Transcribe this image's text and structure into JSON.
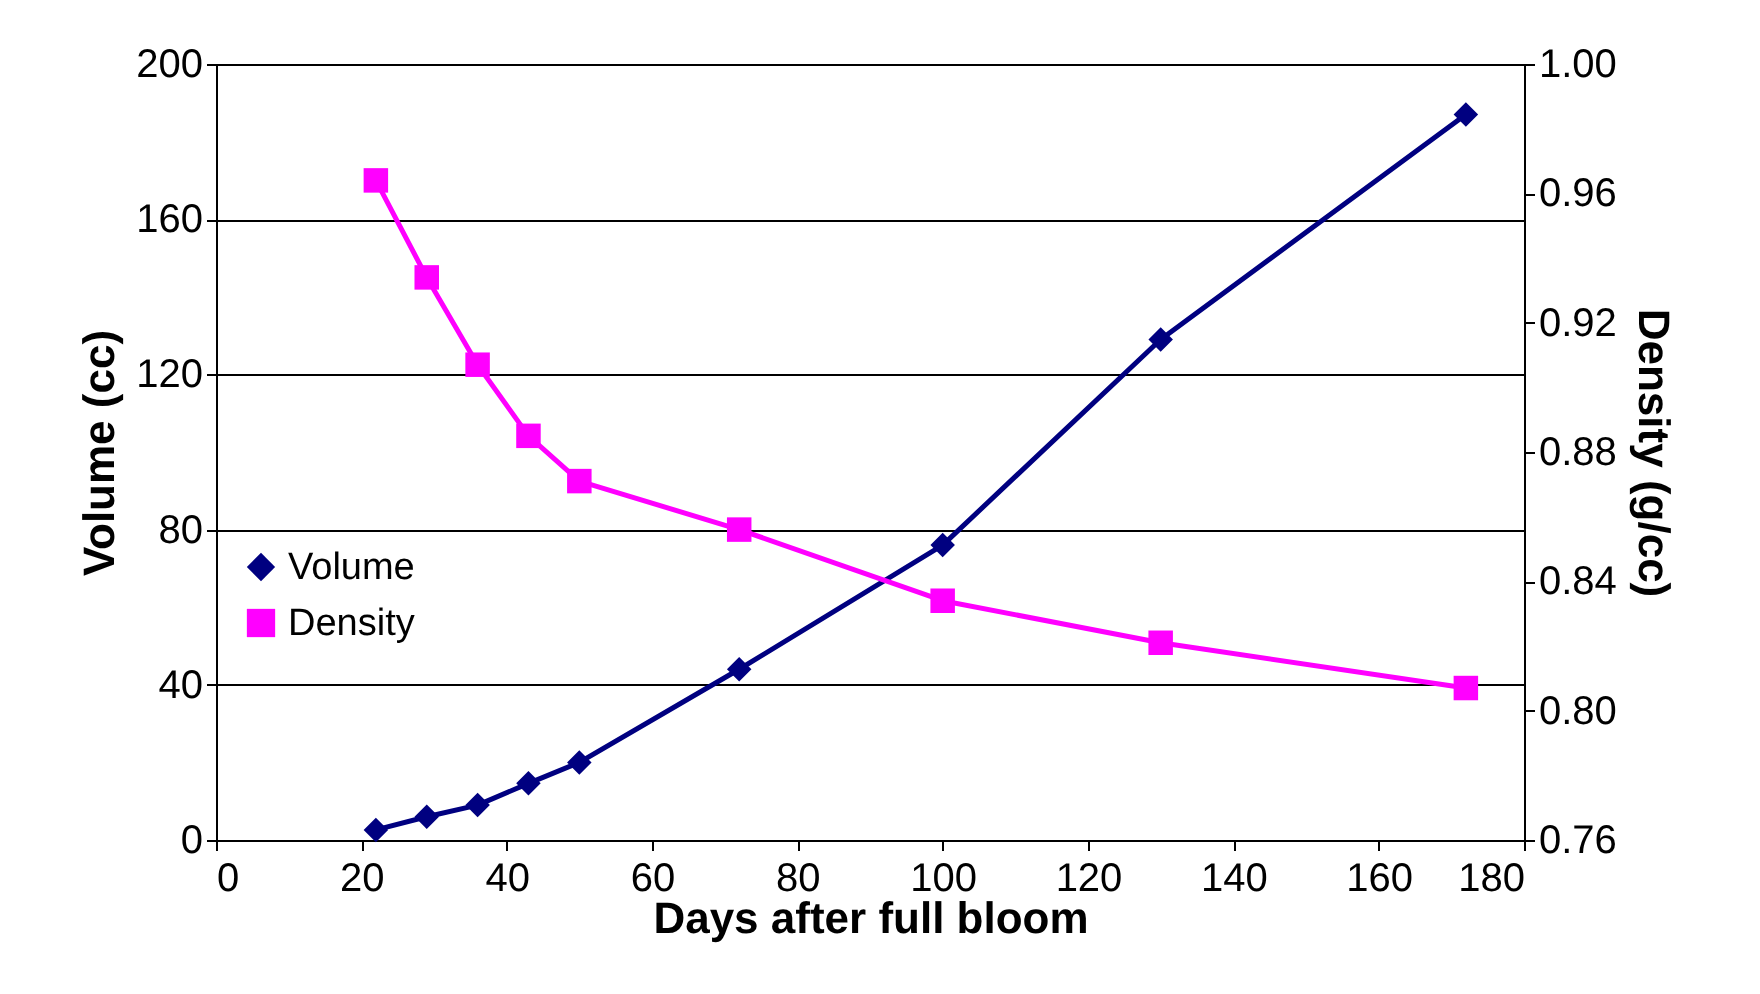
{
  "chart_data": {
    "type": "line",
    "xlabel": "Days after full bloom",
    "ylabel": "Volume (cc)",
    "y2label": "Density (g/cc)",
    "x": [
      22,
      29,
      36,
      43,
      50,
      72,
      100,
      130,
      172
    ],
    "series": [
      {
        "name": "Volume",
        "color": "#000080",
        "marker": "diamond",
        "values": [
          2.6,
          6,
          9,
          14.6,
          20,
          44,
          76,
          129,
          187
        ]
      },
      {
        "name": "Density",
        "color": "#ff00ff",
        "marker": "square",
        "axis": "y2",
        "values": [
          0.964,
          0.934,
          0.907,
          0.885,
          0.871,
          0.856,
          0.834,
          0.821,
          0.807
        ]
      }
    ],
    "xlim": [
      0,
      180
    ],
    "xticks": [
      0,
      20,
      40,
      60,
      80,
      100,
      120,
      140,
      160,
      180
    ],
    "ylim": [
      0,
      200
    ],
    "yticks": [
      0,
      40,
      80,
      120,
      160,
      200
    ],
    "y2lim": [
      0.76,
      1.0
    ],
    "y2ticks": [
      0.76,
      {
        "value": 0.8,
        "label": "0.80"
      },
      0.84,
      0.88,
      0.92,
      0.96,
      {
        "value": 1.0,
        "label": "1.00"
      }
    ],
    "grid": "y",
    "legend": "left",
    "line_style": "solid"
  }
}
